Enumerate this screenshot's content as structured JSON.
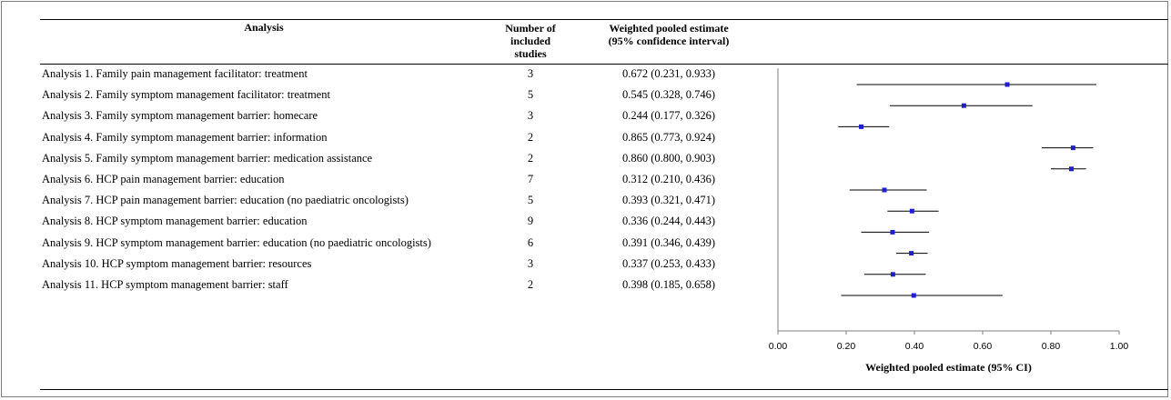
{
  "headers": {
    "analysis": "Analysis",
    "num_studies_lines": [
      "Number of",
      "included",
      "studies"
    ],
    "estimate_lines": [
      "Weighted pooled estimate",
      "(95% confidence interval)"
    ]
  },
  "rows": [
    {
      "label": "Analysis 1.  Family pain management facilitator: treatment",
      "n": "3",
      "ci_text": "0.672 (0.231, 0.933)"
    },
    {
      "label": "Analysis 2.  Family symptom management facilitator: treatment",
      "n": "5",
      "ci_text": "0.545 (0.328, 0.746)"
    },
    {
      "label": "Analysis 3.  Family symptom management barrier: homecare",
      "n": "3",
      "ci_text": "0.244 (0.177, 0.326)"
    },
    {
      "label": "Analysis 4.  Family symptom management barrier: information",
      "n": "2",
      "ci_text": "0.865 (0.773, 0.924)"
    },
    {
      "label": "Analysis 5.  Family symptom management barrier: medication assistance",
      "n": "2",
      "ci_text": "0.860 (0.800, 0.903)"
    },
    {
      "label": "Analysis 6.  HCP pain management barrier: education",
      "n": "7",
      "ci_text": "0.312 (0.210, 0.436)"
    },
    {
      "label": "Analysis 7.  HCP pain management barrier: education (no paediatric oncologists)",
      "n": "5",
      "ci_text": "0.393 (0.321, 0.471)"
    },
    {
      "label": "Analysis 8.  HCP symptom management barrier: education",
      "n": "9",
      "ci_text": "0.336 (0.244, 0.443)"
    },
    {
      "label": "Analysis 9.  HCP symptom management barrier: education (no paediatric oncologists)",
      "n": "6",
      "ci_text": "0.391 (0.346, 0.439)"
    },
    {
      "label": "Analysis 10. HCP symptom management barrier: resources",
      "n": "3",
      "ci_text": "0.337 (0.253, 0.433)"
    },
    {
      "label": "Analysis 11.  HCP symptom management barrier: staff",
      "n": "2",
      "ci_text": "0.398 (0.185, 0.658)"
    }
  ],
  "chart_data": {
    "type": "scatter",
    "subtype": "forest-plot",
    "xlabel": "Weighted pooled estimate (95% CI)",
    "xlim": [
      0,
      1
    ],
    "xticks": [
      "0.00",
      "0.20",
      "0.40",
      "0.60",
      "0.80",
      "1.00"
    ],
    "grid": false,
    "marker_color": "#1f1fd0",
    "points": [
      {
        "estimate": 0.672,
        "lower": 0.231,
        "upper": 0.933
      },
      {
        "estimate": 0.545,
        "lower": 0.328,
        "upper": 0.746
      },
      {
        "estimate": 0.244,
        "lower": 0.177,
        "upper": 0.326
      },
      {
        "estimate": 0.865,
        "lower": 0.773,
        "upper": 0.924
      },
      {
        "estimate": 0.86,
        "lower": 0.8,
        "upper": 0.903
      },
      {
        "estimate": 0.312,
        "lower": 0.21,
        "upper": 0.436
      },
      {
        "estimate": 0.393,
        "lower": 0.321,
        "upper": 0.471
      },
      {
        "estimate": 0.336,
        "lower": 0.244,
        "upper": 0.443
      },
      {
        "estimate": 0.391,
        "lower": 0.346,
        "upper": 0.439
      },
      {
        "estimate": 0.337,
        "lower": 0.253,
        "upper": 0.433
      },
      {
        "estimate": 0.398,
        "lower": 0.185,
        "upper": 0.658
      }
    ]
  }
}
